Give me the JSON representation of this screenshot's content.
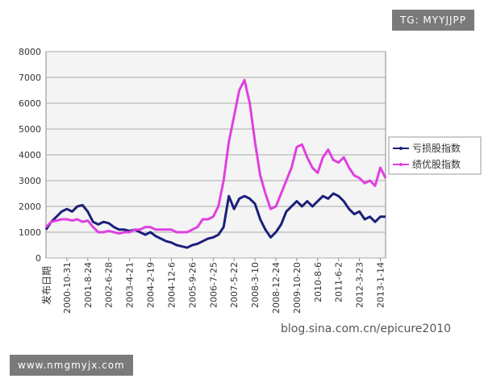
{
  "chart_data": {
    "type": "line",
    "x_label": "发布日期",
    "categories": [
      null,
      null,
      null,
      null,
      "2000-10-31",
      null,
      null,
      null,
      "2001-8-24",
      null,
      null,
      null,
      "2002-6-28",
      null,
      null,
      null,
      "2003-4-21",
      null,
      null,
      null,
      "2004-2-19",
      null,
      null,
      null,
      "2004-12-6",
      null,
      null,
      null,
      "2005-9-26",
      null,
      null,
      null,
      "2006-7-25",
      null,
      null,
      null,
      "2007-5-22",
      null,
      null,
      null,
      "2008-3-10",
      null,
      null,
      null,
      "2008-12-24",
      null,
      null,
      null,
      "2009-10-20",
      null,
      null,
      null,
      "2010-8-6",
      null,
      null,
      null,
      "2011-6-2",
      null,
      null,
      null,
      "2012-3-23",
      null,
      null,
      null,
      "2013-1-14",
      null
    ],
    "series": [
      {
        "name": "亏损股指数",
        "color": "#1c1f7a",
        "values": [
          1100,
          1400,
          1600,
          1800,
          1900,
          1800,
          2000,
          2050,
          1800,
          1400,
          1300,
          1400,
          1350,
          1200,
          1100,
          1100,
          1050,
          1100,
          1000,
          900,
          1000,
          850,
          750,
          650,
          600,
          500,
          450,
          400,
          500,
          550,
          650,
          750,
          800,
          900,
          1200,
          2400,
          1900,
          2300,
          2400,
          2300,
          2100,
          1500,
          1100,
          800,
          1000,
          1300,
          1800,
          2000,
          2200,
          2000,
          2200,
          2000,
          2200,
          2400,
          2300,
          2500,
          2400,
          2200,
          1900,
          1700,
          1800,
          1500,
          1600,
          1400,
          1600,
          1600
        ]
      },
      {
        "name": "绩优股指数",
        "color": "#e040e0",
        "values": [
          1200,
          1400,
          1450,
          1500,
          1500,
          1450,
          1500,
          1400,
          1450,
          1200,
          1000,
          1000,
          1050,
          1000,
          950,
          1000,
          1000,
          1100,
          1100,
          1200,
          1200,
          1100,
          1100,
          1100,
          1100,
          1000,
          1000,
          1000,
          1100,
          1200,
          1500,
          1500,
          1600,
          2000,
          3000,
          4500,
          5500,
          6500,
          6900,
          6000,
          4500,
          3200,
          2500,
          1900,
          2000,
          2500,
          3000,
          3500,
          4300,
          4400,
          3900,
          3500,
          3300,
          3900,
          4200,
          3800,
          3700,
          3900,
          3500,
          3200,
          3100,
          2900,
          3000,
          2800,
          3500,
          3100
        ]
      }
    ],
    "ylim": [
      0,
      8000
    ],
    "yticks": [
      0,
      1000,
      2000,
      3000,
      4000,
      5000,
      6000,
      7000,
      8000
    ],
    "grid": true
  },
  "watermarks": {
    "badge_top": "TG: MYYJJPP",
    "badge_bottom": "www.nmgmyjx.com",
    "source": "blog.sina.com.cn/epicure2010"
  }
}
